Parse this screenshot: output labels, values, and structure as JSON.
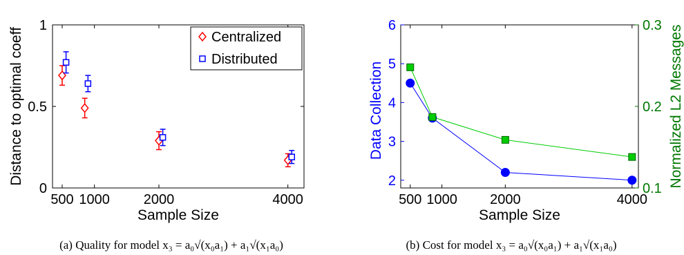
{
  "chart_data": [
    {
      "type": "scatter",
      "panel": "a",
      "caption": "(a) Quality for model x₃ = a₀√(x₀a₁) + a₁√(x₁a₀)",
      "xlabel": "Sample Size",
      "ylabel": "Distance to optimal coeff",
      "xlim": [
        350,
        4250
      ],
      "ylim": [
        0,
        1
      ],
      "x_ticks": [
        500,
        1000,
        2000,
        4000
      ],
      "y_ticks": [
        0,
        0.5,
        1
      ],
      "y_tick_labels": [
        "0",
        "0.5",
        "1"
      ],
      "legend_position": "top-right",
      "series": [
        {
          "name": "Centralized",
          "marker": "diamond",
          "color": "#ff0000",
          "x": [
            500,
            850,
            2000,
            4000
          ],
          "y": [
            0.69,
            0.49,
            0.29,
            0.17
          ],
          "err": [
            0.06,
            0.06,
            0.055,
            0.04
          ]
        },
        {
          "name": "Distributed",
          "marker": "square",
          "color": "#0000ff",
          "x": [
            560,
            900,
            2060,
            4060
          ],
          "y": [
            0.77,
            0.64,
            0.31,
            0.19
          ],
          "err": [
            0.065,
            0.05,
            0.05,
            0.04
          ]
        }
      ]
    },
    {
      "type": "line",
      "panel": "b",
      "caption": "(b) Cost for model x₃ = a₀√(x₀a₁) + a₁√(x₁a₀)",
      "xlabel": "Sample Size",
      "ylabel_left": "Data Collection",
      "ylabel_right": "Normalized L2 Messages",
      "xlim": [
        350,
        4100
      ],
      "ylim_left": [
        1.8,
        6
      ],
      "ylim_right": [
        0.1,
        0.3
      ],
      "x_ticks": [
        500,
        1000,
        2000,
        4000
      ],
      "y_ticks_left": [
        2,
        3,
        4,
        5,
        6
      ],
      "y_ticks_right": [
        0.1,
        0.2,
        0.3
      ],
      "y_tick_labels_right": [
        "0.1",
        "0.2",
        "0.3"
      ],
      "series": [
        {
          "name": "Data Collection",
          "axis": "left",
          "marker": "circle",
          "color": "#0000ff",
          "x": [
            500,
            850,
            2000,
            4000
          ],
          "y": [
            4.5,
            3.6,
            2.2,
            2.0
          ]
        },
        {
          "name": "Normalized L2 Messages",
          "axis": "right",
          "marker": "square",
          "color": "#00cc00",
          "x": [
            500,
            850,
            2000,
            4000
          ],
          "y": [
            0.248,
            0.187,
            0.159,
            0.138
          ]
        }
      ]
    }
  ]
}
